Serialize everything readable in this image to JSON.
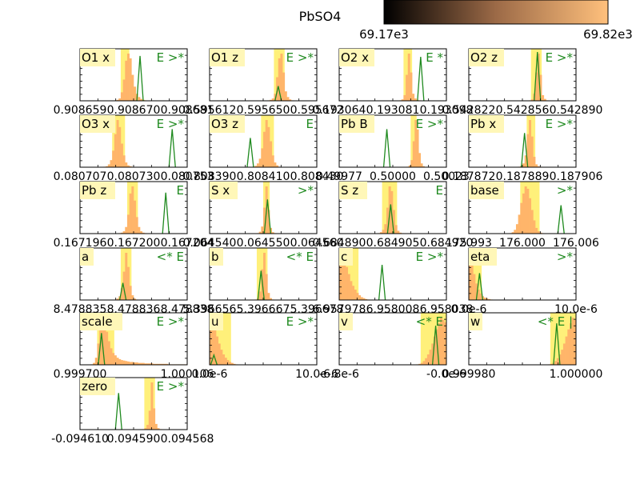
{
  "title": "PbSO4",
  "colorbar": {
    "min_label": "69.17e3",
    "max_label": "69.82e3",
    "color_low": "#000000",
    "color_mid": "#9c6a47",
    "color_high": "#ffc07c"
  },
  "colors": {
    "histogram": "#ffb56a",
    "highlight_band": "#fff07a",
    "label_box": "#fff7b8",
    "curve": "#1f8a1f",
    "markers": "#1f8a1f"
  },
  "chart_data": [
    {
      "type": "bar",
      "label": "O1 x",
      "markers": "E >*",
      "ticks": [
        "0.908659",
        "0.908670",
        "0.908681"
      ],
      "values": [
        0,
        0,
        0,
        0,
        0,
        0,
        0,
        0,
        0,
        0,
        0,
        0,
        0,
        0,
        0,
        0,
        1,
        2,
        5,
        18,
        45,
        85,
        100,
        90,
        55,
        30,
        15,
        8,
        4,
        2,
        1,
        0,
        0,
        0,
        0,
        0,
        0,
        0,
        0,
        0,
        0,
        0,
        0,
        0,
        0,
        0,
        0,
        0,
        0,
        0
      ],
      "band": [
        19,
        23
      ],
      "curve_peak": 28,
      "curve_height": 92
    },
    {
      "type": "bar",
      "label": "O1 z",
      "markers": "E >*",
      "ticks": [
        "0.595612",
        "0.595650",
        "0.595672"
      ],
      "values": [
        0,
        0,
        0,
        0,
        0,
        0,
        0,
        0,
        0,
        0,
        0,
        0,
        0,
        0,
        0,
        0,
        0,
        0,
        0,
        0,
        0,
        0,
        0,
        0,
        0,
        0,
        0,
        1,
        2,
        5,
        15,
        50,
        90,
        100,
        60,
        20,
        8,
        3,
        1,
        0,
        0,
        0,
        0,
        0,
        0,
        0,
        0,
        0,
        0,
        0
      ],
      "band": [
        30,
        35
      ],
      "curve_peak": 32,
      "curve_height": 30
    },
    {
      "type": "bar",
      "label": "O2 x",
      "markers": "E *",
      "ticks": [
        "0.193064",
        "0.193081",
        "0.193098"
      ],
      "values": [
        0,
        0,
        0,
        0,
        0,
        0,
        0,
        0,
        0,
        0,
        0,
        0,
        0,
        0,
        0,
        0,
        0,
        0,
        0,
        0,
        0,
        0,
        0,
        0,
        0,
        0,
        0,
        0,
        1,
        3,
        12,
        55,
        100,
        60,
        15,
        5,
        2,
        1,
        0,
        0,
        0,
        0,
        0,
        0,
        0,
        0,
        0,
        0,
        0,
        0
      ],
      "band": [
        30,
        34
      ],
      "curve_peak": 38,
      "curve_height": 90
    },
    {
      "type": "bar",
      "label": "O2 z",
      "markers": "E >*",
      "ticks": [
        "0.542822",
        "0.542856",
        "0.542890"
      ],
      "values": [
        0,
        0,
        0,
        0,
        0,
        0,
        0,
        0,
        0,
        0,
        0,
        0,
        0,
        0,
        0,
        0,
        0,
        0,
        0,
        0,
        0,
        0,
        0,
        0,
        0,
        0,
        0,
        0,
        1,
        3,
        15,
        60,
        100,
        55,
        12,
        4,
        1,
        0,
        0,
        0,
        0,
        0,
        0,
        0,
        0,
        0,
        0,
        0,
        0,
        0
      ],
      "band": [
        29,
        34
      ],
      "curve_peak": 32,
      "curve_height": 100
    },
    {
      "type": "bar",
      "label": "O3 x",
      "markers": "E >*",
      "ticks": [
        "0.080707",
        "0.080730",
        "0.080753"
      ],
      "values": [
        0,
        0,
        0,
        0,
        0,
        0,
        0,
        0,
        0,
        0,
        0,
        1,
        2,
        6,
        15,
        35,
        70,
        100,
        85,
        50,
        25,
        10,
        4,
        2,
        1,
        0,
        0,
        0,
        0,
        0,
        0,
        0,
        0,
        0,
        0,
        0,
        0,
        0,
        0,
        0,
        0,
        0,
        0,
        0,
        0,
        0,
        0,
        0,
        0,
        0
      ],
      "band": [
        15,
        21
      ],
      "curve_peak": 43,
      "curve_height": 78
    },
    {
      "type": "bar",
      "label": "O3 z",
      "markers": "E",
      "ticks": [
        "0.808390",
        "0.808410",
        "0.808430"
      ],
      "values": [
        0,
        0,
        0,
        0,
        0,
        0,
        0,
        0,
        0,
        0,
        0,
        0,
        0,
        0,
        0,
        0,
        0,
        0,
        0,
        0,
        1,
        3,
        8,
        18,
        40,
        75,
        100,
        85,
        55,
        25,
        10,
        4,
        1,
        0,
        0,
        0,
        0,
        0,
        0,
        0,
        0,
        0,
        0,
        0,
        0,
        0,
        0,
        0,
        0,
        0
      ],
      "band": [
        24,
        30
      ],
      "curve_peak": 19,
      "curve_height": 60
    },
    {
      "type": "bar",
      "label": "Pb B",
      "markers": "E >*",
      "ticks": [
        "0.49977",
        "0.50000",
        "0.50023"
      ],
      "values": [
        0,
        0,
        0,
        0,
        0,
        0,
        0,
        0,
        0,
        0,
        0,
        0,
        0,
        0,
        0,
        0,
        0,
        0,
        0,
        0,
        0,
        0,
        0,
        0,
        0,
        0,
        0,
        0,
        0,
        0,
        0,
        0,
        0,
        0,
        1,
        4,
        15,
        55,
        100,
        80,
        30,
        8,
        2,
        0,
        0,
        0,
        0,
        0,
        0,
        0,
        0,
        0,
        0,
        0
      ],
      "band": [
        36,
        39
      ],
      "curve_peak": 24,
      "curve_height": 78
    },
    {
      "type": "bar",
      "label": "Pb x",
      "markers": "E >*",
      "ticks": [
        "0.187872",
        "0.187889",
        "0.187906"
      ],
      "values": [
        0,
        0,
        0,
        0,
        0,
        0,
        0,
        0,
        0,
        0,
        0,
        0,
        0,
        0,
        0,
        0,
        0,
        0,
        0,
        0,
        0,
        0,
        0,
        1,
        3,
        8,
        25,
        70,
        100,
        65,
        22,
        6,
        2,
        1,
        0,
        0,
        0,
        0,
        0,
        0,
        0,
        0,
        0,
        0,
        0,
        0,
        0,
        0,
        0,
        0
      ],
      "band": [
        27,
        31
      ],
      "curve_peak": 26,
      "curve_height": 70
    },
    {
      "type": "bar",
      "label": "Pb z",
      "markers": "E",
      "ticks": [
        "0.167196",
        "0.167200",
        "0.167204"
      ],
      "values": [
        0,
        0,
        0,
        0,
        0,
        0,
        0,
        0,
        0,
        0,
        0,
        0,
        0,
        0,
        0,
        0,
        0,
        0,
        1,
        2,
        5,
        14,
        40,
        85,
        100,
        70,
        35,
        14,
        5,
        2,
        1,
        0,
        0,
        0,
        0,
        0,
        0,
        0,
        0,
        0,
        0,
        0,
        0,
        0,
        0,
        0,
        0,
        0,
        0,
        0
      ],
      "band": [
        22,
        27
      ],
      "curve_peak": 40,
      "curve_height": 84
    },
    {
      "type": "bar",
      "label": "S x",
      "markers": ">*",
      "ticks": [
        "0.064540",
        "0.064550",
        "0.064560"
      ],
      "values": [
        0,
        0,
        0,
        0,
        0,
        0,
        0,
        0,
        0,
        0,
        0,
        0,
        0,
        0,
        0,
        0,
        0,
        0,
        0,
        0,
        0,
        0,
        1,
        4,
        15,
        55,
        100,
        50,
        12,
        3,
        1,
        0,
        0,
        0,
        0,
        0,
        0,
        0,
        0,
        0,
        0,
        0,
        0,
        0,
        0,
        0,
        0,
        0,
        0,
        0
      ],
      "band": [
        25,
        28
      ],
      "curve_peak": 27,
      "curve_height": 70
    },
    {
      "type": "bar",
      "label": "S z",
      "markers": "E",
      "ticks": [
        "0.684890",
        "0.684905",
        "0.684920"
      ],
      "values": [
        0,
        0,
        0,
        0,
        0,
        0,
        0,
        0,
        0,
        0,
        0,
        0,
        0,
        0,
        0,
        0,
        0,
        0,
        1,
        3,
        8,
        20,
        55,
        100,
        90,
        50,
        18,
        6,
        2,
        1,
        0,
        0,
        0,
        0,
        0,
        0,
        0,
        0,
        0,
        0,
        0,
        0,
        0,
        0,
        0,
        0,
        0,
        0,
        0,
        0
      ],
      "band": [
        20,
        27
      ],
      "curve_peak": 24,
      "curve_height": 60
    },
    {
      "type": "bar",
      "label": "base",
      "markers": ">*",
      "ticks": [
        "175.993",
        "176.000",
        "176.006"
      ],
      "values": [
        0,
        0,
        0,
        0,
        0,
        0,
        0,
        0,
        0,
        0,
        0,
        0,
        0,
        0,
        0,
        0,
        0,
        0,
        0,
        1,
        3,
        8,
        20,
        40,
        65,
        85,
        100,
        95,
        75,
        50,
        28,
        12,
        5,
        2,
        1,
        0,
        0,
        0,
        0,
        0,
        0,
        0,
        0,
        0,
        0,
        0,
        0,
        0,
        0,
        0
      ],
      "band": [
        24,
        33
      ],
      "curve_peak": 43,
      "curve_height": 58
    },
    {
      "type": "bar",
      "label": "a",
      "markers": "<* E",
      "ticks": [
        "8.478835",
        "8.478836",
        "8.478838"
      ],
      "values": [
        0,
        0,
        0,
        0,
        0,
        0,
        0,
        0,
        0,
        0,
        0,
        0,
        0,
        0,
        0,
        0,
        1,
        3,
        8,
        25,
        60,
        100,
        70,
        30,
        10,
        3,
        1,
        0,
        0,
        0,
        0,
        0,
        0,
        0,
        0,
        0,
        0,
        0,
        0,
        0,
        0,
        0,
        0,
        0,
        0,
        0,
        0,
        0,
        0,
        0
      ],
      "band": [
        19,
        24
      ],
      "curve_peak": 20,
      "curve_height": 35
    },
    {
      "type": "bar",
      "label": "b",
      "markers": "<* E",
      "ticks": [
        "5.396656",
        "5.396667",
        "5.396678"
      ],
      "values": [
        0,
        0,
        0,
        0,
        0,
        0,
        0,
        0,
        0,
        0,
        0,
        0,
        0,
        0,
        0,
        0,
        0,
        0,
        0,
        0,
        0,
        1,
        4,
        18,
        65,
        100,
        55,
        15,
        4,
        1,
        0,
        0,
        0,
        0,
        0,
        0,
        0,
        0,
        0,
        0,
        0,
        0,
        0,
        0,
        0,
        0,
        0,
        0,
        0,
        0
      ],
      "band": [
        22,
        27
      ],
      "curve_peak": 24,
      "curve_height": 60
    },
    {
      "type": "bar",
      "label": "c",
      "markers": "E >*",
      "ticks": [
        "6.957978",
        "6.958008",
        "6.958038"
      ],
      "values": [
        100,
        90,
        85,
        70,
        55,
        40,
        30,
        22,
        15,
        10,
        6,
        4,
        2,
        1,
        0,
        0,
        0,
        0,
        0,
        0,
        0,
        0,
        0,
        0,
        0,
        0,
        0,
        0,
        0,
        0,
        0,
        0,
        0,
        0,
        0,
        0,
        0,
        0,
        0,
        0,
        0,
        0,
        0,
        0,
        0,
        0,
        0,
        0,
        0,
        0
      ],
      "band": [
        0,
        9
      ],
      "curve_peak": 20,
      "curve_height": 72
    },
    {
      "type": "bar",
      "label": "eta",
      "markers": ">*",
      "ticks": [
        "0.0e-6",
        "",
        "10.0e-6"
      ],
      "values": [
        100,
        80,
        55,
        35,
        22,
        14,
        8,
        5,
        3,
        2,
        1,
        0,
        0,
        0,
        0,
        0,
        0,
        0,
        0,
        0,
        0,
        0,
        0,
        0,
        0,
        0,
        0,
        0,
        0,
        0,
        0,
        0,
        0,
        0,
        0,
        0,
        0,
        0,
        0,
        0,
        0,
        0,
        0,
        0,
        0,
        0,
        0,
        0,
        0,
        0
      ],
      "band": [
        0,
        6
      ],
      "curve_peak": 5,
      "curve_height": 55
    },
    {
      "type": "bar",
      "label": "scale",
      "markers": "E >*",
      "ticks": [
        "0.999700",
        "",
        "1.000106"
      ],
      "values": [
        0,
        0,
        0,
        0,
        0,
        1,
        4,
        15,
        45,
        80,
        100,
        90,
        70,
        50,
        35,
        25,
        20,
        15,
        12,
        10,
        9,
        8,
        7,
        6,
        6,
        5,
        5,
        4,
        4,
        4,
        3,
        3,
        3,
        3,
        2,
        2,
        2,
        2,
        2,
        2,
        2,
        1,
        1,
        1,
        1,
        1,
        1,
        1,
        1,
        1
      ],
      "band": [
        8,
        16
      ],
      "curve_peak": 10,
      "curve_height": 65
    },
    {
      "type": "bar",
      "label": "u",
      "markers": "E >*",
      "ticks": [
        "0.0e-6",
        "",
        "10.0e-6"
      ],
      "values": [
        100,
        90,
        75,
        60,
        45,
        32,
        22,
        15,
        10,
        6,
        4,
        2,
        1,
        0,
        0,
        0,
        0,
        0,
        0,
        0,
        0,
        0,
        0,
        0,
        0,
        0,
        0,
        0,
        0,
        0,
        0,
        0,
        0,
        0,
        0,
        0,
        0,
        0,
        0,
        0,
        0,
        0,
        0,
        0,
        0,
        0,
        0,
        0,
        0,
        0
      ],
      "band": [
        0,
        10
      ],
      "curve_peak": 2,
      "curve_height": 20
    },
    {
      "type": "bar",
      "label": "v",
      "markers": "<* E",
      "ticks": [
        "-6.8e-6",
        "",
        "-0.0e-6"
      ],
      "values": [
        0,
        0,
        0,
        0,
        0,
        0,
        0,
        0,
        0,
        0,
        0,
        0,
        0,
        0,
        0,
        0,
        0,
        0,
        0,
        0,
        0,
        0,
        0,
        0,
        0,
        0,
        0,
        0,
        0,
        0,
        0,
        0,
        0,
        0,
        0,
        0,
        1,
        2,
        4,
        8,
        14,
        22,
        32,
        45,
        60,
        75,
        88,
        100,
        95,
        90
      ],
      "band": [
        38,
        50
      ],
      "curve_peak": 45,
      "curve_height": 80
    },
    {
      "type": "bar",
      "label": "w",
      "markers": "<* E |",
      "ticks": [
        "0.999980",
        "",
        "1.000000"
      ],
      "values": [
        0,
        0,
        0,
        0,
        0,
        0,
        0,
        0,
        0,
        0,
        0,
        0,
        0,
        0,
        0,
        0,
        0,
        0,
        0,
        0,
        0,
        0,
        0,
        0,
        0,
        0,
        0,
        0,
        0,
        0,
        0,
        0,
        0,
        0,
        0,
        0,
        0,
        1,
        2,
        4,
        8,
        14,
        22,
        32,
        45,
        60,
        75,
        88,
        100,
        95
      ],
      "band": [
        38,
        50
      ],
      "curve_peak": 41,
      "curve_height": 85
    },
    {
      "type": "bar",
      "label": "zero",
      "markers": "E >*",
      "ticks": [
        "-0.094610",
        "0.094590",
        "0.094568"
      ],
      "values": [
        0,
        0,
        0,
        0,
        0,
        0,
        0,
        0,
        0,
        0,
        0,
        0,
        0,
        0,
        0,
        0,
        0,
        0,
        0,
        0,
        0,
        0,
        0,
        0,
        0,
        0,
        0,
        0,
        0,
        1,
        3,
        10,
        40,
        100,
        45,
        12,
        3,
        1,
        0,
        0,
        0,
        0,
        0,
        0,
        0,
        0,
        0,
        0,
        0,
        0
      ],
      "band": [
        30,
        35
      ],
      "curve_peak": 18,
      "curve_height": 75
    }
  ]
}
